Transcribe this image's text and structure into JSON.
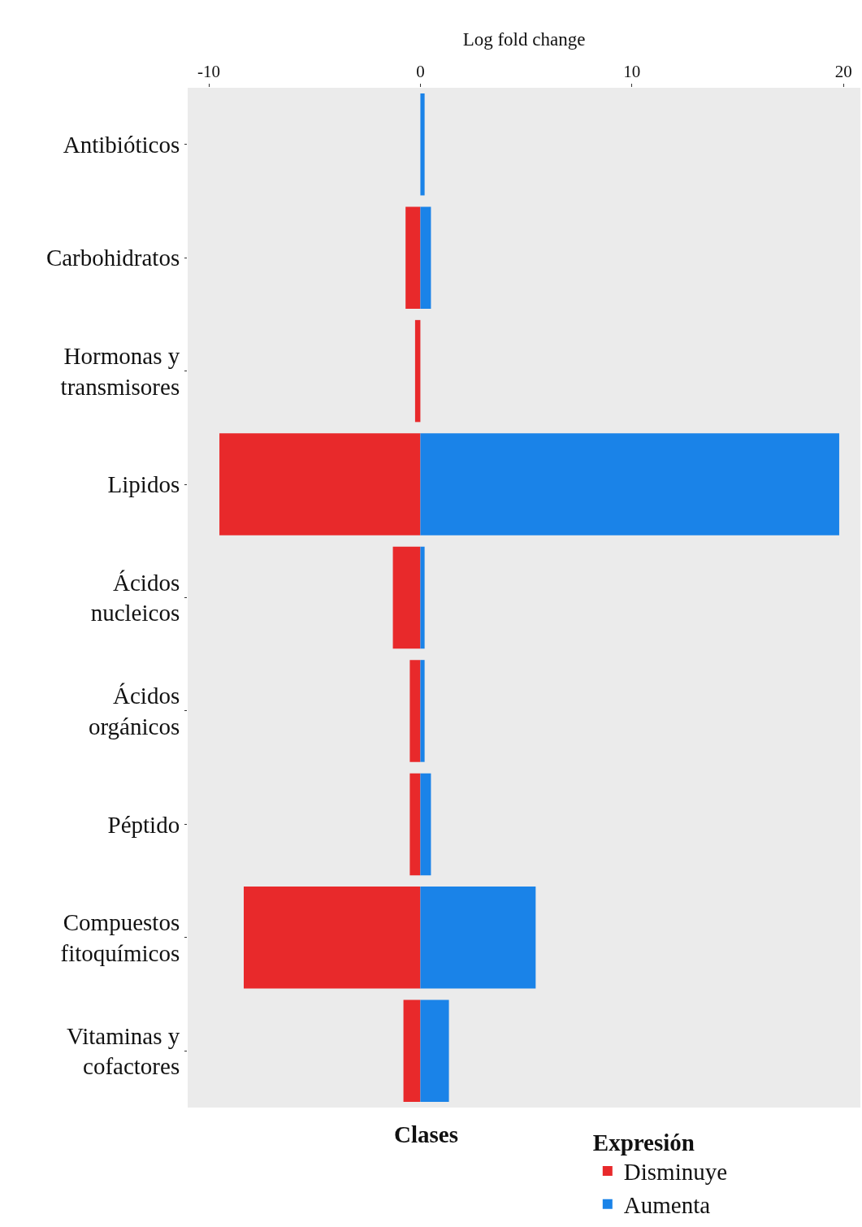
{
  "chart_data": {
    "type": "bar",
    "orientation": "horizontal",
    "stacked": true,
    "xlabel": "Log fold change",
    "annotations": [
      "Clases"
    ],
    "legend_title": "Expresión",
    "legend": "bottom",
    "grid": false,
    "categories": [
      "Antibióticos",
      "Carbohidratos",
      "Hormonas y transmisores",
      "Lipidos",
      "Ácidos nucleicos",
      "Ácidos orgánicos",
      "Péptido",
      "Compuestos fitoquímicos",
      "Vitaminas y cofactores"
    ],
    "xlim": [
      -11,
      20.8
    ],
    "xticks": [
      -10,
      0,
      10,
      20
    ],
    "series": [
      {
        "name": "Disminuye",
        "color": "#e8292b",
        "values": [
          null,
          -0.7,
          -0.25,
          -9.5,
          -1.3,
          -0.5,
          -0.5,
          -8.35,
          -0.8
        ]
      },
      {
        "name": "Aumenta",
        "color": "#1a83e8",
        "values": [
          0.2,
          0.5,
          null,
          19.8,
          0.2,
          0.2,
          0.5,
          5.45,
          1.35
        ]
      }
    ]
  }
}
